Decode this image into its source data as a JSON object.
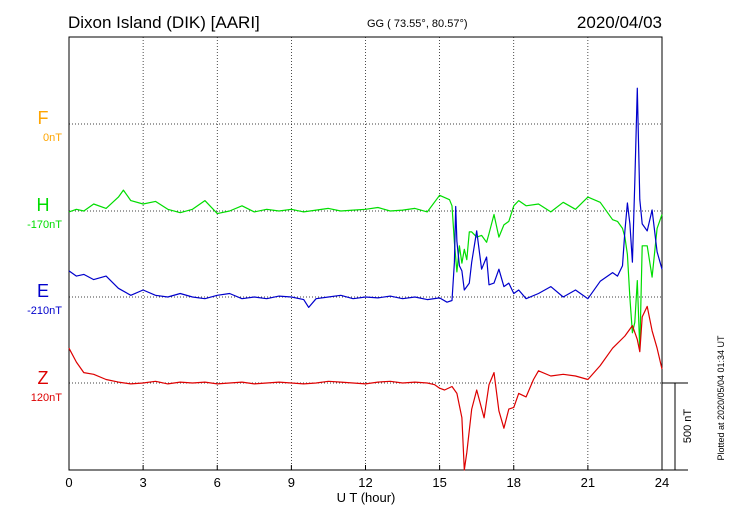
{
  "header": {
    "station": "Dixon Island (DIK)  [AARI]",
    "coords": "GG ( 73.55°,  80.57°)",
    "date": "2020/04/03"
  },
  "footer": {
    "plotted": "Plotted at 2020/05/04 01:34 UT"
  },
  "chart_data": {
    "type": "line",
    "xlabel": "U T (hour)",
    "xlim": [
      0,
      24
    ],
    "xticks": [
      0,
      3,
      6,
      9,
      12,
      15,
      18,
      21,
      24
    ],
    "scale_bar": {
      "label": "500 nT",
      "value_nT": 500
    },
    "series": [
      {
        "name": "F",
        "baseline": "0nT",
        "color": "#FFA500",
        "x": [],
        "y": []
      },
      {
        "name": "H",
        "baseline": "-170nT",
        "color": "#00DD00",
        "x": [
          0,
          0.3,
          0.6,
          1,
          1.5,
          2,
          2.2,
          2.5,
          3,
          3.5,
          4,
          4.5,
          5,
          5.5,
          6,
          6.5,
          7,
          7.5,
          8,
          8.5,
          9,
          9.5,
          10,
          10.5,
          11,
          11.5,
          12,
          12.5,
          13,
          13.5,
          14,
          14.5,
          15,
          15.4,
          15.5,
          15.6,
          15.7,
          15.8,
          15.9,
          16,
          16.1,
          16.2,
          16.3,
          16.5,
          16.7,
          16.9,
          17,
          17.2,
          17.4,
          17.6,
          17.8,
          18,
          18.2,
          18.5,
          19,
          19.5,
          20,
          20.5,
          21,
          21.5,
          22,
          22.2,
          22.4,
          22.5,
          22.6,
          22.7,
          22.8,
          22.9,
          23,
          23.1,
          23.2,
          23.4,
          23.6,
          23.8,
          24
        ],
        "y": [
          -5,
          10,
          0,
          40,
          15,
          80,
          120,
          60,
          40,
          55,
          10,
          -10,
          10,
          60,
          -15,
          0,
          30,
          -5,
          10,
          0,
          10,
          -5,
          5,
          15,
          0,
          5,
          10,
          20,
          0,
          5,
          15,
          -5,
          90,
          65,
          30,
          -180,
          -350,
          -200,
          -300,
          -220,
          -280,
          -120,
          -120,
          -150,
          -140,
          -180,
          -130,
          -20,
          -150,
          -80,
          -60,
          30,
          60,
          30,
          40,
          -5,
          50,
          10,
          80,
          50,
          -50,
          -60,
          -100,
          -150,
          -250,
          -500,
          -700,
          -640,
          -400,
          -800,
          -200,
          -200,
          -380,
          -100,
          -20
        ]
      },
      {
        "name": "E",
        "baseline": "-210nT",
        "color": "#0000CC",
        "x": [
          0,
          0.3,
          0.6,
          1,
          1.5,
          2,
          2.5,
          3,
          3.5,
          4,
          4.5,
          5,
          5.5,
          6,
          6.5,
          7,
          7.5,
          8,
          8.5,
          9,
          9.5,
          9.7,
          10,
          10.5,
          11,
          11.5,
          12,
          12.5,
          13,
          13.5,
          14,
          14.5,
          15,
          15.3,
          15.5,
          15.6,
          15.65,
          15.7,
          15.8,
          15.9,
          16,
          16.1,
          16.2,
          16.3,
          16.5,
          16.7,
          16.9,
          17,
          17.2,
          17.4,
          17.6,
          17.8,
          18,
          18.2,
          18.5,
          19,
          19.5,
          20,
          20.5,
          21,
          21.5,
          22,
          22.2,
          22.4,
          22.5,
          22.6,
          22.7,
          22.8,
          22.9,
          23,
          23.1,
          23.2,
          23.4,
          23.6,
          23.8,
          24
        ],
        "y": [
          150,
          120,
          130,
          100,
          120,
          50,
          10,
          40,
          10,
          0,
          20,
          0,
          -10,
          10,
          20,
          -10,
          0,
          -10,
          5,
          0,
          -15,
          -60,
          -10,
          0,
          10,
          -10,
          0,
          -5,
          5,
          -10,
          0,
          -15,
          -5,
          -30,
          -20,
          200,
          520,
          320,
          180,
          150,
          40,
          60,
          80,
          200,
          380,
          160,
          230,
          70,
          80,
          160,
          60,
          80,
          20,
          40,
          -10,
          20,
          60,
          0,
          40,
          -10,
          90,
          140,
          120,
          180,
          380,
          540,
          420,
          200,
          660,
          1200,
          560,
          420,
          380,
          500,
          260,
          160
        ]
      },
      {
        "name": "Z",
        "baseline": "120nT",
        "color": "#DD0000",
        "x": [
          0,
          0.3,
          0.6,
          1,
          1.5,
          2,
          2.5,
          3,
          3.5,
          4,
          4.5,
          5,
          5.5,
          6,
          6.5,
          7,
          7.5,
          8,
          8.5,
          9,
          9.5,
          10,
          10.5,
          11,
          11.5,
          12,
          12.5,
          13,
          13.5,
          14,
          14.5,
          14.8,
          15,
          15.2,
          15.5,
          15.7,
          15.9,
          16,
          16.1,
          16.3,
          16.5,
          16.8,
          17,
          17.2,
          17.4,
          17.6,
          17.8,
          18,
          18.2,
          18.5,
          18.8,
          19,
          19.5,
          20,
          20.5,
          21,
          21.5,
          22,
          22.5,
          22.8,
          23,
          23.1,
          23.2,
          23.4,
          23.6,
          23.8,
          24
        ],
        "y": [
          200,
          120,
          60,
          50,
          20,
          5,
          -5,
          0,
          10,
          -5,
          5,
          0,
          5,
          -5,
          0,
          5,
          -5,
          0,
          5,
          0,
          -5,
          0,
          10,
          5,
          0,
          -5,
          5,
          10,
          0,
          5,
          0,
          -10,
          -30,
          -40,
          -20,
          -60,
          -200,
          -500,
          -400,
          -150,
          -40,
          -200,
          -10,
          60,
          -160,
          -260,
          -150,
          -140,
          -60,
          -80,
          20,
          70,
          40,
          50,
          40,
          20,
          100,
          200,
          270,
          330,
          250,
          180,
          380,
          440,
          300,
          200,
          80
        ]
      }
    ]
  }
}
